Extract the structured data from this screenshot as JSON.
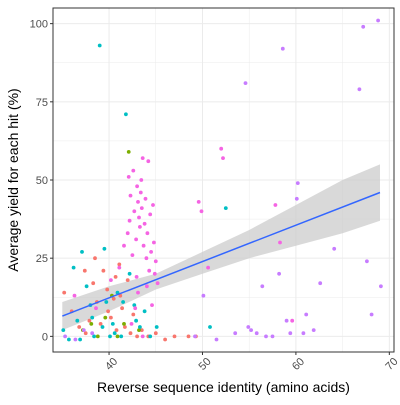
{
  "chart_data": {
    "type": "scatter",
    "title": "",
    "xlabel": "Reverse sequence identity (amino acids)",
    "ylabel": "Average yield for each hit (%)",
    "xlim": [
      34,
      70.5
    ],
    "ylim": [
      -5,
      105
    ],
    "x_ticks": [
      40,
      50,
      60,
      70
    ],
    "x_tick_labels": [
      "40",
      "50",
      "60",
      "70"
    ],
    "y_ticks": [
      0,
      25,
      50,
      75,
      100
    ],
    "y_tick_labels": [
      "0",
      "25",
      "50",
      "75",
      "100"
    ],
    "grid": true,
    "legend": "none",
    "colors": {
      "panel_border": "#333333",
      "grid": "#ebebeb",
      "trend_line": "#3366ff",
      "confidence_band": "#cccccc"
    },
    "trend": {
      "method": "linear",
      "x": [
        35,
        69
      ],
      "y": [
        6.5,
        46
      ],
      "band_x": [
        35,
        40,
        45,
        50,
        55,
        60,
        65,
        69
      ],
      "band_lower": [
        2,
        8,
        15,
        20,
        25,
        29,
        33,
        37
      ],
      "band_upper": [
        11,
        16,
        20,
        27,
        34,
        42,
        50,
        55
      ]
    },
    "series": [
      {
        "color": "#f8766d",
        "points": [
          [
            35.2,
            14
          ],
          [
            36,
            8
          ],
          [
            36.8,
            3
          ],
          [
            37.5,
            1
          ],
          [
            37.9,
            5
          ],
          [
            38.3,
            17
          ],
          [
            38.7,
            11
          ],
          [
            39.1,
            4
          ],
          [
            39.4,
            21
          ],
          [
            39.8,
            15
          ],
          [
            40.2,
            6
          ],
          [
            40.5,
            12
          ],
          [
            40.8,
            2
          ],
          [
            41.1,
            23
          ],
          [
            41.4,
            9
          ],
          [
            41.7,
            3
          ],
          [
            42,
            18
          ],
          [
            42.3,
            1
          ],
          [
            42.6,
            7
          ],
          [
            43,
            0
          ],
          [
            43.5,
            2
          ],
          [
            44.2,
            0
          ],
          [
            45,
            1
          ],
          [
            46,
            -1
          ],
          [
            47,
            0
          ],
          [
            48.5,
            0
          ],
          [
            49.3,
            0
          ],
          [
            38.5,
            25
          ],
          [
            37.4,
            21
          ],
          [
            41.2,
            13
          ],
          [
            39.9,
            8
          ],
          [
            40.7,
            19
          ]
        ]
      },
      {
        "color": "#7cae00",
        "points": [
          [
            38.8,
            0
          ],
          [
            39.6,
            6
          ],
          [
            40.3,
            13
          ],
          [
            40.9,
            0
          ],
          [
            41.6,
            4
          ],
          [
            42.1,
            59
          ],
          [
            43.2,
            2
          ],
          [
            37.2,
            2
          ],
          [
            38.1,
            4
          ]
        ]
      },
      {
        "color": "#00bfc4",
        "points": [
          [
            35.1,
            2
          ],
          [
            35.7,
            -1
          ],
          [
            36.2,
            22
          ],
          [
            36.6,
            5
          ],
          [
            37.1,
            27
          ],
          [
            37.6,
            16
          ],
          [
            38,
            10
          ],
          [
            38.4,
            0
          ],
          [
            39,
            93
          ],
          [
            39.3,
            3
          ],
          [
            39.7,
            11
          ],
          [
            40.1,
            0
          ],
          [
            40.4,
            4
          ],
          [
            40.9,
            14
          ],
          [
            41.3,
            0
          ],
          [
            41.8,
            71
          ],
          [
            42.2,
            20
          ],
          [
            42.7,
            10
          ],
          [
            43.3,
            3
          ],
          [
            43.8,
            8
          ],
          [
            44.4,
            0
          ],
          [
            45.1,
            3
          ],
          [
            50.8,
            3
          ],
          [
            52.5,
            41
          ],
          [
            39.5,
            28
          ],
          [
            38.2,
            6
          ],
          [
            40.6,
            1
          ],
          [
            41.5,
            11
          ],
          [
            36.9,
            -1
          ],
          [
            42.9,
            5
          ]
        ]
      },
      {
        "color": "#c77cff",
        "points": [
          [
            35.3,
            0
          ],
          [
            36.4,
            -1
          ],
          [
            37.3,
            2
          ],
          [
            38.2,
            1
          ],
          [
            49.2,
            0
          ],
          [
            50.1,
            13
          ],
          [
            51.5,
            -1
          ],
          [
            53.5,
            1
          ],
          [
            54.6,
            81
          ],
          [
            54.9,
            3
          ],
          [
            55.2,
            2
          ],
          [
            55.8,
            1
          ],
          [
            56.4,
            16
          ],
          [
            56.8,
            0
          ],
          [
            57.5,
            0
          ],
          [
            58.2,
            20
          ],
          [
            58.6,
            92
          ],
          [
            59,
            5
          ],
          [
            59.4,
            1
          ],
          [
            60.2,
            49
          ],
          [
            61.1,
            7
          ],
          [
            61.9,
            2
          ],
          [
            62.6,
            17
          ],
          [
            64.1,
            28
          ],
          [
            66.8,
            79
          ],
          [
            67.2,
            99
          ],
          [
            67.6,
            24
          ],
          [
            68.1,
            7
          ],
          [
            68.8,
            101
          ],
          [
            69.1,
            16
          ],
          [
            60.1,
            44
          ],
          [
            60.8,
            1
          ]
        ]
      },
      {
        "color": "#f564e3",
        "points": [
          [
            36.3,
            13
          ],
          [
            38.6,
            9
          ],
          [
            40.2,
            18
          ],
          [
            41.1,
            22
          ],
          [
            41.6,
            29
          ],
          [
            42,
            33
          ],
          [
            42.2,
            37
          ],
          [
            42.3,
            45
          ],
          [
            42.5,
            26
          ],
          [
            42.6,
            53
          ],
          [
            42.7,
            40
          ],
          [
            42.9,
            31
          ],
          [
            43,
            48
          ],
          [
            43.1,
            43
          ],
          [
            43.2,
            38
          ],
          [
            43.3,
            35
          ],
          [
            43.4,
            46
          ],
          [
            43.5,
            41
          ],
          [
            43.6,
            57
          ],
          [
            43.7,
            29
          ],
          [
            43.8,
            36
          ],
          [
            43.9,
            44
          ],
          [
            44,
            25
          ],
          [
            44.1,
            33
          ],
          [
            44.2,
            56
          ],
          [
            44.3,
            21
          ],
          [
            44.4,
            39
          ],
          [
            44.5,
            27
          ],
          [
            44.7,
            42
          ],
          [
            44.8,
            30
          ],
          [
            45,
            24
          ],
          [
            45.2,
            17
          ],
          [
            44.6,
            10
          ],
          [
            42.4,
            4
          ],
          [
            43.6,
            0
          ],
          [
            49.6,
            43
          ],
          [
            49.9,
            40
          ],
          [
            50.6,
            22
          ],
          [
            52,
            60
          ],
          [
            52.2,
            57
          ],
          [
            57.8,
            42
          ],
          [
            58.3,
            30
          ],
          [
            59.6,
            5
          ],
          [
            44.9,
            20
          ],
          [
            43.1,
            14
          ],
          [
            42.8,
            9
          ],
          [
            42.1,
            51
          ],
          [
            43.45,
            50
          ],
          [
            42.95,
            19
          ],
          [
            44.05,
            16
          ]
        ]
      }
    ]
  }
}
